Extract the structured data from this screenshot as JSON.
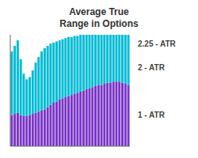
{
  "chart_data": {
    "type": "bar",
    "title": "Average True\nRange in Options",
    "stacked": true,
    "grid": false,
    "tick_labels": false,
    "categories": [
      null,
      null,
      null,
      null,
      null,
      null,
      null,
      null,
      null,
      null,
      null,
      null,
      null,
      null,
      null,
      null,
      null,
      null,
      null,
      null,
      null,
      null,
      null,
      null,
      null,
      null,
      null,
      null,
      null,
      null,
      null,
      null,
      null,
      null,
      null,
      null,
      null,
      null,
      null,
      null
    ],
    "series": [
      {
        "color": "#7b35c8",
        "values": [
          0.63,
          0.6525,
          0.675,
          0.63,
          0.6075,
          0.6075,
          0.63,
          0.6525,
          0.675,
          0.6975,
          0.72,
          0.7425,
          0.7875,
          0.8325,
          0.8775,
          0.9,
          0.945,
          0.9675,
          0.99,
          1.0125,
          1.035,
          1.0575,
          1.08,
          1.1025,
          1.125,
          1.1475,
          1.17,
          1.1925,
          1.215,
          1.2375,
          1.2375,
          1.26,
          1.2825,
          1.2825,
          1.305,
          1.305,
          1.305,
          1.2825,
          1.26,
          1.2375
        ]
      },
      {
        "color": "#00bcd4",
        "values": [
          1.2825,
          1.3725,
          1.4625,
          1.125,
          0.855,
          0.7425,
          0.765,
          0.8775,
          1.0125,
          1.1025,
          1.1925,
          1.2375,
          1.2375,
          1.2375,
          1.215,
          1.215,
          1.1925,
          1.1925,
          1.1925,
          1.1925,
          1.17,
          1.17,
          1.1475,
          1.1475,
          1.125,
          1.1025,
          1.08,
          1.0575,
          1.035,
          1.0125,
          1.0125,
          0.99,
          0.9675,
          0.9675,
          0.945,
          0.945,
          0.945,
          0.9675,
          0.99,
          1.0125
        ]
      }
    ],
    "ylim": [
      0,
      2.25
    ],
    "annotations": [
      "2.25 - ATR",
      "2 - ATR",
      "1 - ATR"
    ]
  }
}
